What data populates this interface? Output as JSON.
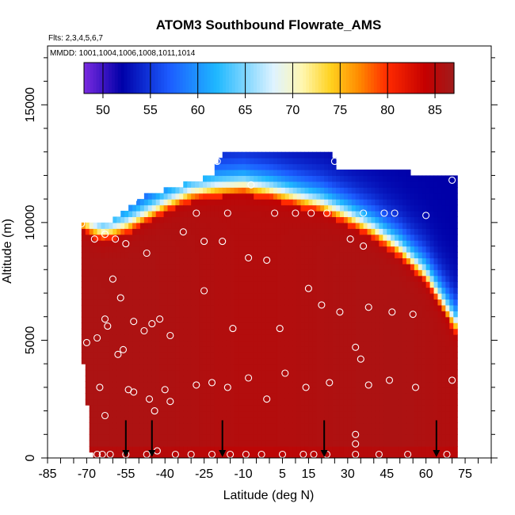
{
  "chart_data": {
    "type": "heatmap",
    "title": "ATOM3 Southbound Flowrate_AMS",
    "flights_label": "Flts: 2,3,4,5,6,7",
    "mmdd_label": "MMDD: 1001,1004,1006,1008,1011,1014",
    "xlabel": "Latitude (deg N)",
    "ylabel": "Altitude (m)",
    "xlim": [
      -85,
      85
    ],
    "ylim": [
      0,
      17500
    ],
    "x_tick_labels": [
      "-85",
      "-70",
      "-55",
      "-40",
      "-25",
      "-10",
      "5",
      "15",
      "30",
      "45",
      "60",
      "75"
    ],
    "x_tick_values": [
      -85,
      -70,
      -55,
      -40,
      -25,
      -10,
      5,
      15,
      30,
      45,
      60,
      75
    ],
    "y_tick_labels": [
      "0",
      "5000",
      "10000",
      "15000"
    ],
    "y_tick_values": [
      0,
      5000,
      10000,
      15000
    ],
    "colorbar": {
      "range": [
        48,
        87
      ],
      "tick_labels": [
        "50",
        "55",
        "60",
        "65",
        "70",
        "75",
        "80",
        "85"
      ],
      "tick_values": [
        50,
        55,
        60,
        65,
        70,
        75,
        80,
        85
      ],
      "colors": [
        "#7b2be0",
        "#0000a8",
        "#1c5cff",
        "#1fb8ff",
        "#dff3ff",
        "#fff7b0",
        "#ffd21f",
        "#ff8a00",
        "#ff2a00",
        "#c40000",
        "#a01c1c"
      ],
      "color_stops": [
        48,
        52,
        57,
        62,
        68,
        71,
        74,
        77,
        80,
        84,
        87
      ]
    },
    "field": {
      "x_range": [
        -72,
        72
      ],
      "column_tops": [
        [
          -72,
          10000
        ],
        [
          -68,
          10000
        ],
        [
          -64,
          10050
        ],
        [
          -60,
          10050
        ],
        [
          -57,
          10400
        ],
        [
          -53,
          10700
        ],
        [
          -49,
          11100
        ],
        [
          -45,
          11200
        ],
        [
          -40,
          11400
        ],
        [
          -30,
          11700
        ],
        [
          -22,
          12000
        ],
        [
          -18,
          12900
        ],
        [
          24,
          12900
        ],
        [
          26,
          12300
        ],
        [
          45,
          12300
        ],
        [
          60,
          12000
        ],
        [
          70,
          11900
        ],
        [
          72,
          11900
        ]
      ],
      "column_bottoms": [
        [
          -72,
          5000
        ],
        [
          -68,
          0
        ],
        [
          72,
          0
        ]
      ],
      "tropopause_profile": [
        [
          -72,
          9700
        ],
        [
          -68,
          9400
        ],
        [
          -64,
          9200
        ],
        [
          -60,
          9300
        ],
        [
          -55,
          9500
        ],
        [
          -50,
          9800
        ],
        [
          -45,
          10100
        ],
        [
          -40,
          10400
        ],
        [
          -30,
          10900
        ],
        [
          -20,
          11100
        ],
        [
          -10,
          11200
        ],
        [
          0,
          11000
        ],
        [
          10,
          10700
        ],
        [
          20,
          10400
        ],
        [
          30,
          9900
        ],
        [
          40,
          9300
        ],
        [
          50,
          8500
        ],
        [
          60,
          7400
        ],
        [
          66,
          6300
        ],
        [
          72,
          5200
        ]
      ],
      "surface_value": 84.5,
      "core_value": 86
    },
    "sample_points": [
      [
        -84,
        9900
      ],
      [
        -78,
        9900
      ],
      [
        -72,
        9950
      ],
      [
        -69,
        10200
      ],
      [
        -65,
        10400
      ],
      [
        -60,
        10900
      ],
      [
        -52,
        11000
      ],
      [
        -67,
        9300
      ],
      [
        -63,
        9500
      ],
      [
        -59,
        9300
      ],
      [
        -55,
        9100
      ],
      [
        -70,
        4900
      ],
      [
        -66,
        5100
      ],
      [
        -63,
        5900
      ],
      [
        -62,
        5600
      ],
      [
        -58,
        4400
      ],
      [
        -56,
        4600
      ],
      [
        -57,
        6800
      ],
      [
        -60,
        7600
      ],
      [
        -52,
        5800
      ],
      [
        -48,
        5400
      ],
      [
        -45,
        5700
      ],
      [
        -42,
        5900
      ],
      [
        -38,
        5200
      ],
      [
        -47,
        8700
      ],
      [
        -54,
        2900
      ],
      [
        -52,
        2800
      ],
      [
        -46,
        2500
      ],
      [
        -44,
        2000
      ],
      [
        -40,
        2900
      ],
      [
        -38,
        2400
      ],
      [
        -65,
        3000
      ],
      [
        -63,
        1800
      ],
      [
        -61,
        150
      ],
      [
        -66,
        150
      ],
      [
        -64,
        150
      ],
      [
        -55,
        150
      ],
      [
        -47,
        150
      ],
      [
        -43,
        300
      ],
      [
        -36,
        150
      ],
      [
        -30,
        150
      ],
      [
        -22,
        150
      ],
      [
        -15,
        150
      ],
      [
        -9,
        150
      ],
      [
        -3,
        150
      ],
      [
        5,
        150
      ],
      [
        13,
        150
      ],
      [
        17,
        150
      ],
      [
        22,
        150
      ],
      [
        33,
        150
      ],
      [
        42,
        150
      ],
      [
        53,
        150
      ],
      [
        68,
        150
      ],
      [
        -28,
        3100
      ],
      [
        -22,
        3200
      ],
      [
        -16,
        3000
      ],
      [
        -8,
        3400
      ],
      [
        -1,
        2500
      ],
      [
        6,
        3600
      ],
      [
        14,
        3000
      ],
      [
        23,
        3200
      ],
      [
        35,
        4200
      ],
      [
        38,
        3100
      ],
      [
        46,
        3300
      ],
      [
        56,
        3000
      ],
      [
        70,
        3300
      ],
      [
        -33,
        9600
      ],
      [
        -25,
        9200
      ],
      [
        -18,
        9200
      ],
      [
        -8,
        8500
      ],
      [
        -1,
        8400
      ],
      [
        15,
        7200
      ],
      [
        20,
        6500
      ],
      [
        27,
        6200
      ],
      [
        33,
        4700
      ],
      [
        38,
        6400
      ],
      [
        47,
        6200
      ],
      [
        55,
        6100
      ],
      [
        -25,
        7100
      ],
      [
        -14,
        5500
      ],
      [
        4,
        5500
      ],
      [
        -28,
        10400
      ],
      [
        -16,
        10400
      ],
      [
        -7,
        11600
      ],
      [
        2,
        10400
      ],
      [
        10,
        10400
      ],
      [
        16,
        10400
      ],
      [
        22,
        10400
      ],
      [
        36,
        10400
      ],
      [
        44,
        10400
      ],
      [
        48,
        10400
      ],
      [
        60,
        10300
      ],
      [
        -20,
        12600
      ],
      [
        25,
        12600
      ],
      [
        70,
        11800
      ],
      [
        31,
        9300
      ],
      [
        36,
        9000
      ],
      [
        33,
        600
      ],
      [
        33,
        1000
      ]
    ],
    "flight_arrows_lat": [
      -55,
      -45,
      -18,
      21,
      64
    ],
    "arrow_top_alt": 700
  }
}
